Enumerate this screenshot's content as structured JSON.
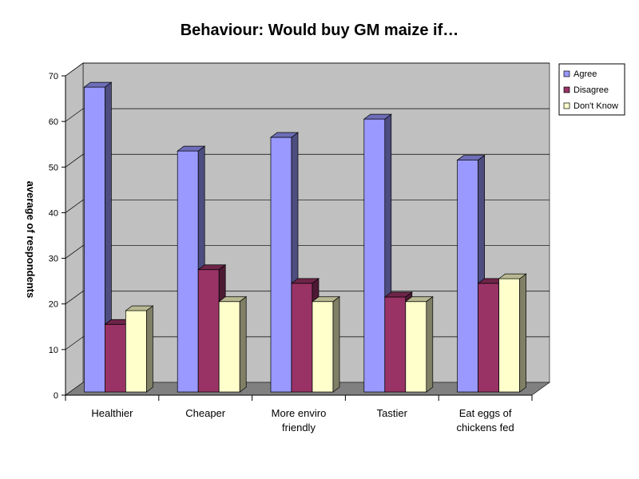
{
  "chart_data": {
    "type": "bar",
    "title": "Behaviour: Would buy GM maize if…",
    "ylabel": "average of respondents",
    "xlabel": "",
    "ylim": [
      0,
      70
    ],
    "yticks": [
      0,
      10,
      20,
      30,
      40,
      50,
      60,
      70
    ],
    "grid": true,
    "legend_position": "right",
    "categories": [
      [
        "Healthier"
      ],
      [
        "Cheaper"
      ],
      [
        "More enviro",
        "friendly"
      ],
      [
        "Tastier"
      ],
      [
        "Eat eggs of",
        "chickens fed"
      ]
    ],
    "series": [
      {
        "name": "Agree",
        "values": [
          67,
          53,
          56,
          60,
          51
        ],
        "color": "#9999ff"
      },
      {
        "name": "Disagree",
        "values": [
          15,
          27,
          24,
          21,
          24
        ],
        "color": "#993366"
      },
      {
        "name": "Don't Know",
        "values": [
          18,
          20,
          20,
          20,
          25
        ],
        "color": "#ffffcc"
      }
    ]
  }
}
